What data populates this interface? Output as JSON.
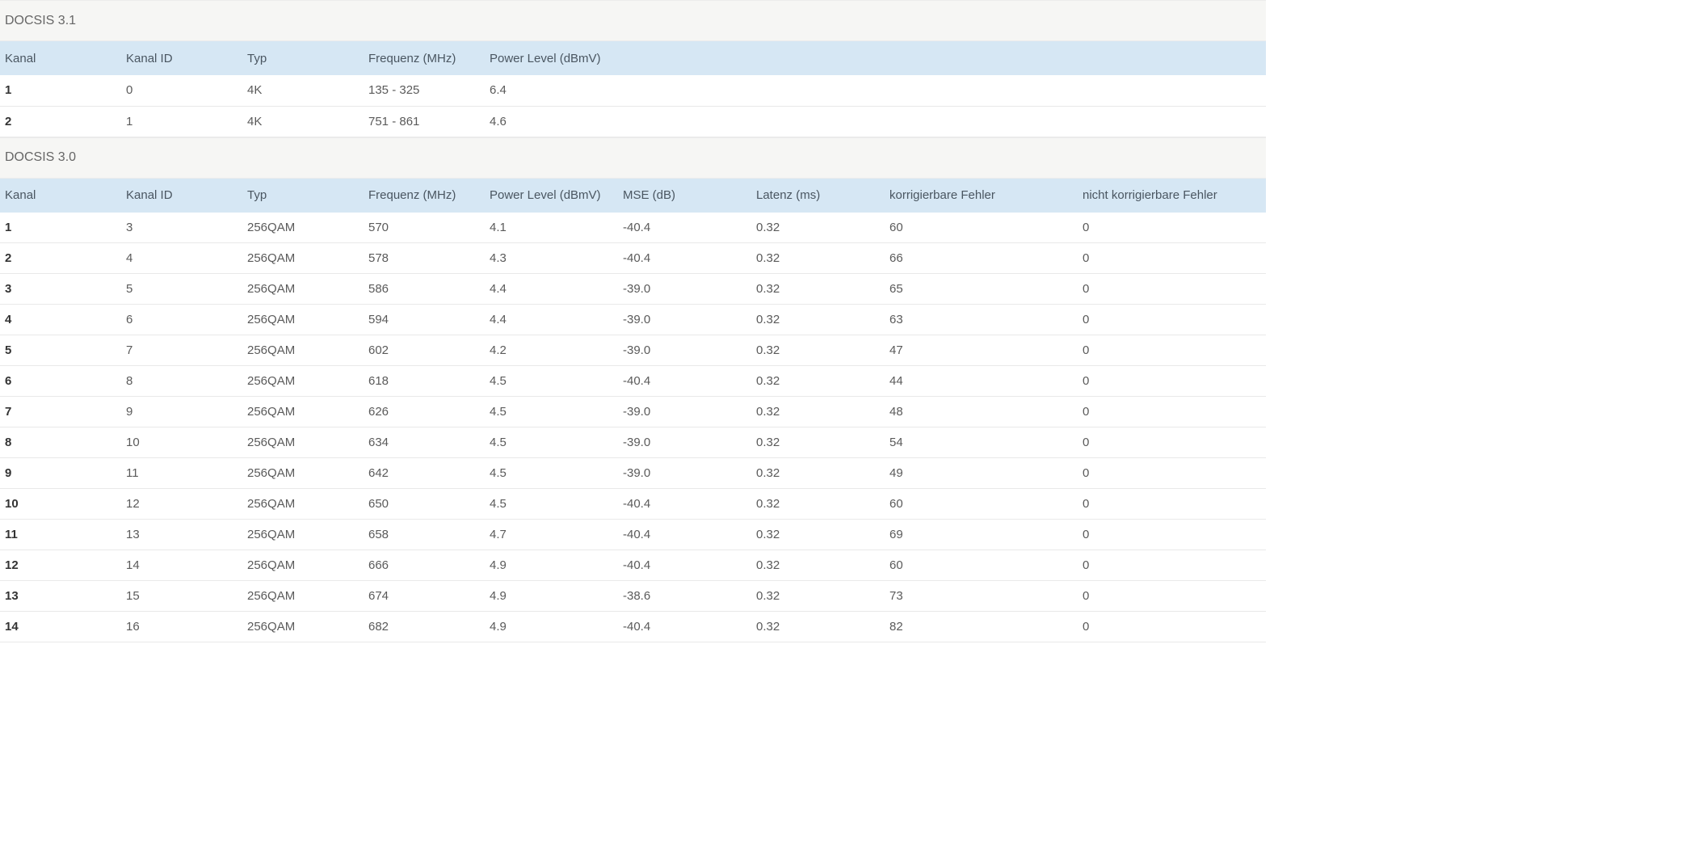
{
  "docsis31": {
    "title": "DOCSIS 3.1",
    "headers": [
      "Kanal",
      "Kanal ID",
      "Typ",
      "Frequenz (MHz)",
      "Power Level (dBmV)"
    ],
    "rows": [
      [
        "1",
        "0",
        "4K",
        "135 - 325",
        "6.4"
      ],
      [
        "2",
        "1",
        "4K",
        "751 - 861",
        "4.6"
      ]
    ]
  },
  "docsis30": {
    "title": "DOCSIS 3.0",
    "headers": [
      "Kanal",
      "Kanal ID",
      "Typ",
      "Frequenz (MHz)",
      "Power Level (dBmV)",
      "MSE (dB)",
      "Latenz (ms)",
      "korrigierbare Fehler",
      "nicht korrigierbare Fehler"
    ],
    "rows": [
      [
        "1",
        "3",
        "256QAM",
        "570",
        "4.1",
        "-40.4",
        "0.32",
        "60",
        "0"
      ],
      [
        "2",
        "4",
        "256QAM",
        "578",
        "4.3",
        "-40.4",
        "0.32",
        "66",
        "0"
      ],
      [
        "3",
        "5",
        "256QAM",
        "586",
        "4.4",
        "-39.0",
        "0.32",
        "65",
        "0"
      ],
      [
        "4",
        "6",
        "256QAM",
        "594",
        "4.4",
        "-39.0",
        "0.32",
        "63",
        "0"
      ],
      [
        "5",
        "7",
        "256QAM",
        "602",
        "4.2",
        "-39.0",
        "0.32",
        "47",
        "0"
      ],
      [
        "6",
        "8",
        "256QAM",
        "618",
        "4.5",
        "-40.4",
        "0.32",
        "44",
        "0"
      ],
      [
        "7",
        "9",
        "256QAM",
        "626",
        "4.5",
        "-39.0",
        "0.32",
        "48",
        "0"
      ],
      [
        "8",
        "10",
        "256QAM",
        "634",
        "4.5",
        "-39.0",
        "0.32",
        "54",
        "0"
      ],
      [
        "9",
        "11",
        "256QAM",
        "642",
        "4.5",
        "-39.0",
        "0.32",
        "49",
        "0"
      ],
      [
        "10",
        "12",
        "256QAM",
        "650",
        "4.5",
        "-40.4",
        "0.32",
        "60",
        "0"
      ],
      [
        "11",
        "13",
        "256QAM",
        "658",
        "4.7",
        "-40.4",
        "0.32",
        "69",
        "0"
      ],
      [
        "12",
        "14",
        "256QAM",
        "666",
        "4.9",
        "-40.4",
        "0.32",
        "60",
        "0"
      ],
      [
        "13",
        "15",
        "256QAM",
        "674",
        "4.9",
        "-38.6",
        "0.32",
        "73",
        "0"
      ],
      [
        "14",
        "16",
        "256QAM",
        "682",
        "4.9",
        "-40.4",
        "0.32",
        "82",
        "0"
      ]
    ]
  }
}
